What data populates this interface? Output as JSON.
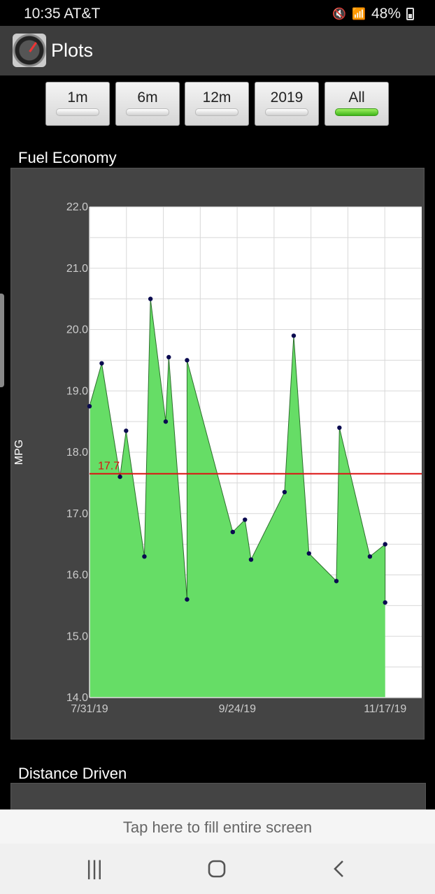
{
  "status_bar": {
    "time": "10:35 AT&T",
    "battery": "48%"
  },
  "app": {
    "title": "Plots"
  },
  "range_buttons": [
    {
      "label": "1m",
      "active": false
    },
    {
      "label": "6m",
      "active": false
    },
    {
      "label": "12m",
      "active": false
    },
    {
      "label": "2019",
      "active": false
    },
    {
      "label": "All",
      "active": true
    }
  ],
  "sections": {
    "fuel_economy": "Fuel Economy",
    "distance_driven": "Distance Driven"
  },
  "fill_screen": "Tap here to fill entire screen",
  "colors": {
    "area_fill": "#66dd66",
    "average_line": "#dd1111",
    "point": "#0a0a50"
  },
  "chart_data": {
    "type": "area",
    "title": "Fuel Economy",
    "ylabel": "MPG",
    "ylim": [
      14.0,
      22.0
    ],
    "yticks": [
      "22.0",
      "21.0",
      "20.0",
      "19.0",
      "18.0",
      "17.0",
      "16.0",
      "15.0",
      "14.0"
    ],
    "x_tick_labels": [
      "7/31/19",
      "9/24/19",
      "11/17/19"
    ],
    "xlim": [
      "2019-07-31",
      "2019-11-17"
    ],
    "grid": true,
    "average": {
      "value": 17.65,
      "label": "17.7"
    },
    "points": [
      {
        "x": "2019-07-31",
        "y": 18.75
      },
      {
        "x": "2019-08-04",
        "y": 19.45
      },
      {
        "x": "2019-08-10",
        "y": 17.6
      },
      {
        "x": "2019-08-12",
        "y": 18.35
      },
      {
        "x": "2019-08-18",
        "y": 16.3
      },
      {
        "x": "2019-08-20",
        "y": 20.5
      },
      {
        "x": "2019-08-25",
        "y": 18.5
      },
      {
        "x": "2019-08-26",
        "y": 19.55
      },
      {
        "x": "2019-09-01",
        "y": 15.6
      },
      {
        "x": "2019-09-01",
        "y": 19.5
      },
      {
        "x": "2019-09-16",
        "y": 16.7
      },
      {
        "x": "2019-09-20",
        "y": 16.9
      },
      {
        "x": "2019-09-22",
        "y": 16.25
      },
      {
        "x": "2019-10-03",
        "y": 17.35
      },
      {
        "x": "2019-10-06",
        "y": 19.9
      },
      {
        "x": "2019-10-11",
        "y": 16.35
      },
      {
        "x": "2019-10-20",
        "y": 15.9
      },
      {
        "x": "2019-10-21",
        "y": 18.4
      },
      {
        "x": "2019-10-31",
        "y": 16.3
      },
      {
        "x": "2019-11-05",
        "y": 16.5
      },
      {
        "x": "2019-11-05",
        "y": 15.55
      }
    ]
  }
}
